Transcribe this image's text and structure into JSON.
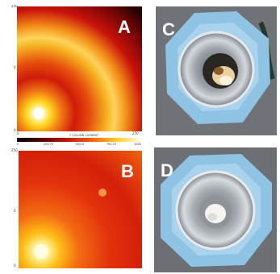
{
  "panels": {
    "a": {
      "letter": "A",
      "y_ticks": [
        "250",
        "0",
        "0"
      ],
      "x_ticks": [
        "0",
        "250"
      ],
      "colorbar": {
        "title": "Y COLUMN CURRENT",
        "ticks": [
          "0",
          "250.75",
          "500.5",
          "750.25",
          "1000"
        ]
      }
    },
    "b": {
      "letter": "B",
      "y_ticks": [
        "250",
        "0",
        "0"
      ]
    },
    "c": {
      "letter": "C"
    },
    "d": {
      "letter": "D"
    }
  }
}
